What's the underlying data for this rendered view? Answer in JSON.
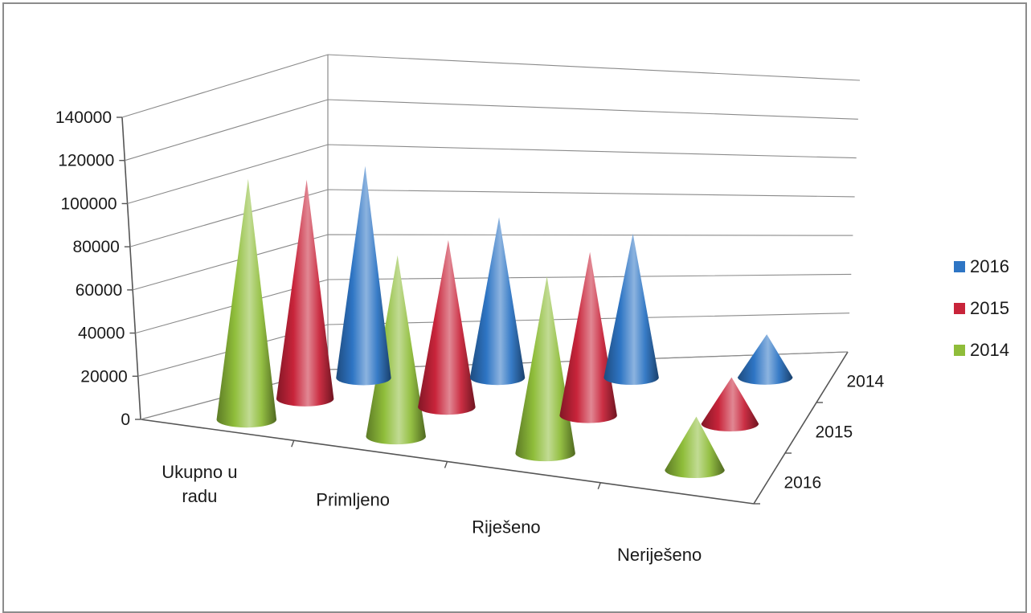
{
  "chart_data": {
    "type": "bar",
    "subtype": "3d-cone",
    "categories": [
      "Ukupno u radu",
      "Primljeno",
      "Riješeno",
      "Neriješeno"
    ],
    "category_lines": [
      [
        "Ukupno u",
        "radu"
      ],
      [
        "Primljeno"
      ],
      [
        "Riješeno"
      ],
      [
        "Neriješeno"
      ]
    ],
    "series": [
      {
        "name": "2016",
        "color": "#2e75c4",
        "values": [
          128000,
          97000,
          87000,
          26000
        ]
      },
      {
        "name": "2015",
        "color": "#c8243a",
        "values": [
          118000,
          90000,
          88000,
          25000
        ]
      },
      {
        "name": "2014",
        "color": "#8fbd3a",
        "values": [
          117000,
          88000,
          86000,
          26000
        ]
      }
    ],
    "depth_labels": [
      "2014",
      "2015",
      "2016"
    ],
    "yticks": [
      "0",
      "20000",
      "40000",
      "60000",
      "80000",
      "100000",
      "120000",
      "140000"
    ],
    "ylim": [
      0,
      140000
    ],
    "grid": true,
    "legend": {
      "position": "right",
      "entries": [
        "2016",
        "2015",
        "2014"
      ]
    },
    "title": "",
    "xlabel": "",
    "ylabel": ""
  }
}
